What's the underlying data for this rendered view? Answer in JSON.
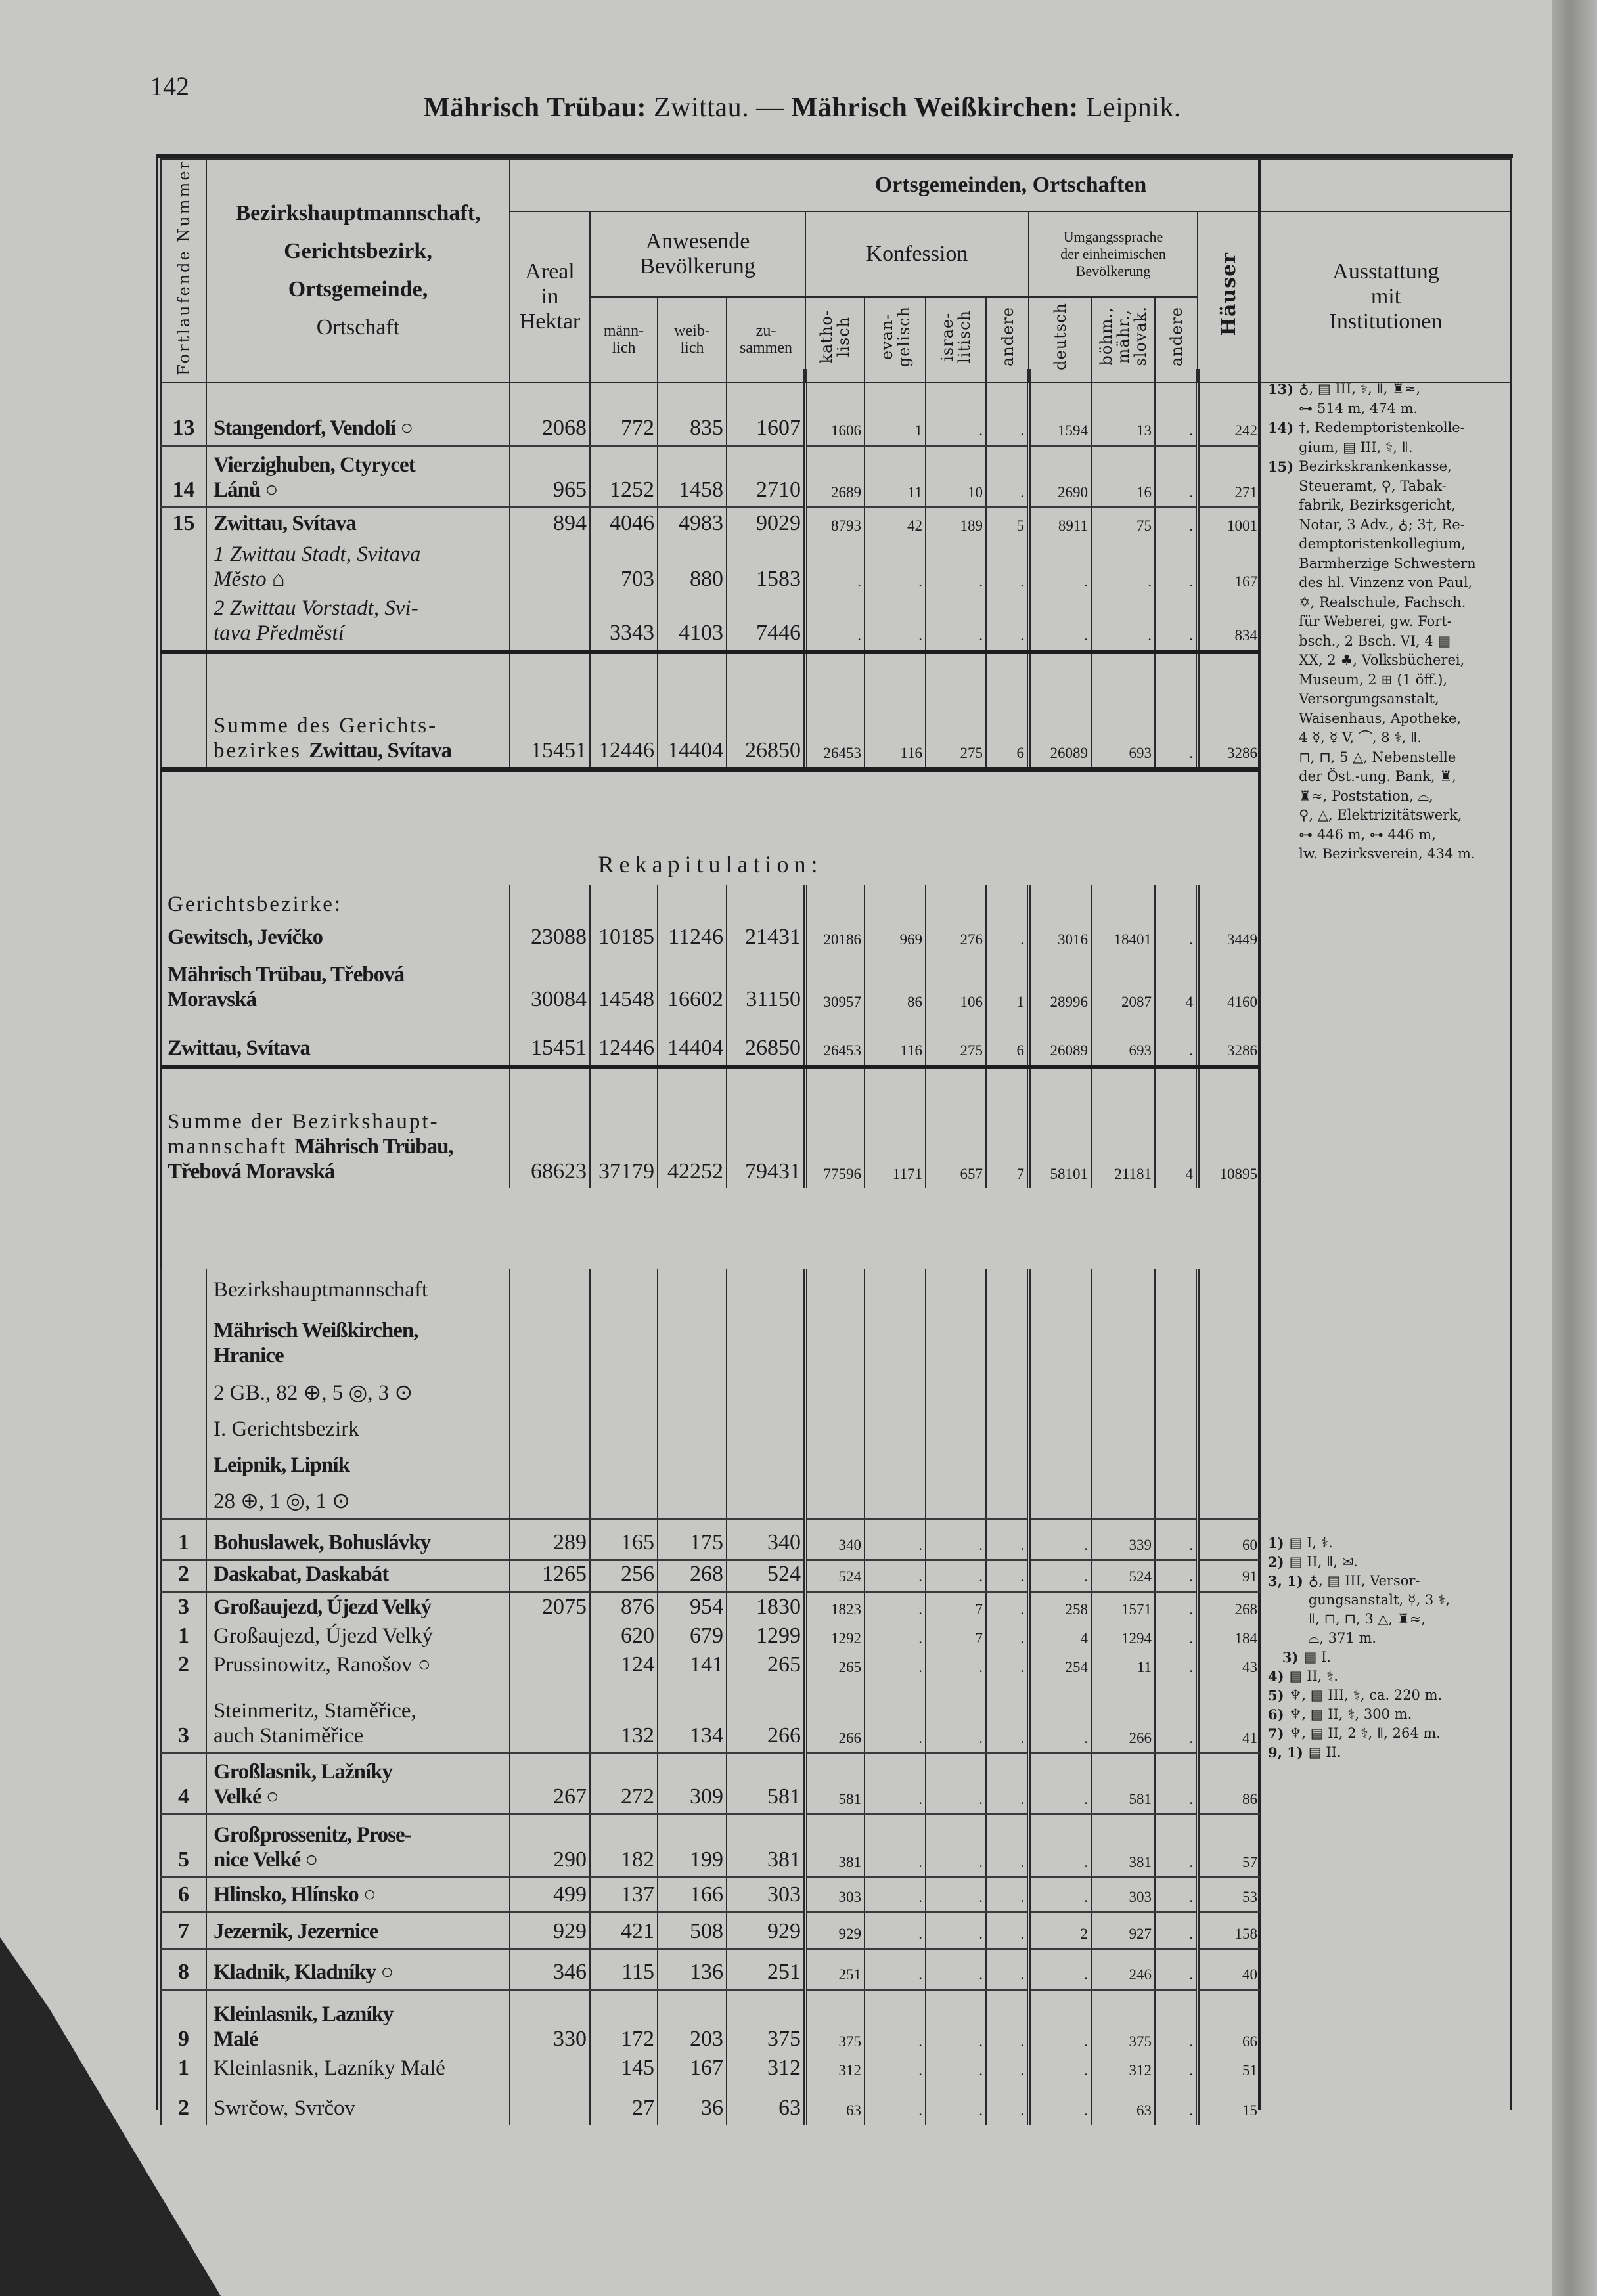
{
  "page_number": "142",
  "running_title": {
    "part1": "Mährisch Trübau:",
    "part2": " Zwittau. — ",
    "part3": "Mährisch Weißkirchen:",
    "part4": " Leipnik."
  },
  "header": {
    "number_col": "Fortlaufende Nummer",
    "name_col": {
      "line1": "Bezirkshauptmannschaft,",
      "line2": "Gerichtsbezirk,",
      "line3": "Ortsgemeinde,",
      "line4": "Ortschaft"
    },
    "group_title": "Ortsgemeinden, Ortschaften",
    "areal": "Areal\nin\nHektar",
    "population": {
      "title": "Anwesende\nBevölkerung",
      "male": "männ-\nlich",
      "female": "weib-\nlich",
      "total": "zu-\nsammen"
    },
    "confession": {
      "title": "Konfession",
      "catholic": "katho-\nlisch",
      "protestant": "evan-\ngelisch",
      "jewish": "israe-\nlitisch",
      "other": "andere"
    },
    "language": {
      "title": "Umgangssprache\nder einheimischen\nBevölkerung",
      "german": "deutsch",
      "czech": "böhm.,\nmähr.,\nslovak.",
      "other": "andere"
    },
    "houses": "Häuser",
    "institutions": "Ausstattung\nmit\nInstitutionen"
  },
  "section1": {
    "rows": [
      {
        "num": "13",
        "name": "Stangendorf, Vendolí ○",
        "style": "bold",
        "values": [
          "2068",
          "772",
          "835",
          "1607",
          "1606",
          "1",
          ".",
          ".",
          "1594",
          "13",
          ".",
          "242"
        ]
      },
      {
        "num": "14",
        "name": "Vierzighuben, Ctyrycet\n     Lánů ○",
        "style": "bold",
        "values": [
          "965",
          "1252",
          "1458",
          "2710",
          "2689",
          "11",
          "10",
          ".",
          "2690",
          "16",
          ".",
          "271"
        ]
      },
      {
        "num": "15",
        "name": "Zwittau, Svítava",
        "style": "bold",
        "values": [
          "894",
          "4046",
          "4983",
          "9029",
          "8793",
          "42",
          "189",
          "5",
          "8911",
          "75",
          ".",
          "1001"
        ]
      },
      {
        "num": "",
        "name": "1 Zwittau Stadt, Svitava\n   Město ⌂",
        "style": "italic",
        "values": [
          "",
          "703",
          "880",
          "1583",
          ".",
          ".",
          ".",
          ".",
          ".",
          ".",
          ".",
          "167"
        ]
      },
      {
        "num": "",
        "name": "2 Zwittau Vorstadt, Svi-\n   tava Předměstí",
        "style": "italic",
        "values": [
          "",
          "3343",
          "4103",
          "7446",
          ".",
          ".",
          ".",
          ".",
          ".",
          ".",
          ".",
          "834"
        ]
      }
    ],
    "sum": {
      "prefix": "Summe des Gerichts-\nbezirkes ",
      "name": "Zwittau, Svítava",
      "values": [
        "15451",
        "12446",
        "14404",
        "26850",
        "26453",
        "116",
        "275",
        "6",
        "26089",
        "693",
        ".",
        "3286"
      ]
    }
  },
  "recap": {
    "title": "Rekapitulation:",
    "label": "Gerichtsbezirke:",
    "rows": [
      {
        "name": "Gewitsch, Jevíčko",
        "values": [
          "23088",
          "10185",
          "11246",
          "21431",
          "20186",
          "969",
          "276",
          ".",
          "3016",
          "18401",
          ".",
          "3449"
        ]
      },
      {
        "name": "Mährisch Trübau, Třebová\n     Moravská",
        "values": [
          "30084",
          "14548",
          "16602",
          "31150",
          "30957",
          "86",
          "106",
          "1",
          "28996",
          "2087",
          "4",
          "4160"
        ]
      },
      {
        "name": "Zwittau, Svítava",
        "values": [
          "15451",
          "12446",
          "14404",
          "26850",
          "26453",
          "116",
          "275",
          "6",
          "26089",
          "693",
          ".",
          "3286"
        ]
      }
    ],
    "sum": {
      "prefix": "Summe der Bezirkshaupt-\nmannschaft ",
      "name": "Mährisch Trübau,\nTřebová Moravská",
      "values": [
        "68623",
        "37179",
        "42252",
        "79431",
        "77596",
        "1171",
        "657",
        "7",
        "58101",
        "21181",
        "4",
        "10895"
      ]
    }
  },
  "section2": {
    "intro": [
      {
        "text": "Bezirkshauptmannschaft",
        "style": "normal"
      },
      {
        "text": "Mährisch Weißkirchen,\nHranice",
        "style": "bold"
      },
      {
        "text": "2 GB., 82 ⊕, 5 ◎, 3 ⊙",
        "style": "normal"
      },
      {
        "text": "I. Gerichtsbezirk",
        "style": "normal"
      },
      {
        "text": "Leipnik, Lipník",
        "style": "bold"
      },
      {
        "text": "28 ⊕, 1 ◎, 1 ⊙",
        "style": "normal"
      }
    ],
    "rows": [
      {
        "num": "1",
        "name": "Bohuslawek, Bohuslávky",
        "style": "bold",
        "values": [
          "289",
          "165",
          "175",
          "340",
          "340",
          ".",
          ".",
          ".",
          ".",
          "339",
          ".",
          "60"
        ]
      },
      {
        "num": "2",
        "name": "Daskabat, Daskabát",
        "style": "bold",
        "values": [
          "1265",
          "256",
          "268",
          "524",
          "524",
          ".",
          ".",
          ".",
          ".",
          "524",
          ".",
          "91"
        ]
      },
      {
        "num": "3",
        "name": "Großaujezd, Újezd Velký",
        "style": "bold",
        "values": [
          "2075",
          "876",
          "954",
          "1830",
          "1823",
          ".",
          "7",
          ".",
          "258",
          "1571",
          ".",
          "268"
        ]
      },
      {
        "num": "1",
        "name": "Großaujezd, Újezd Velký",
        "style": "normal",
        "values": [
          "",
          "620",
          "679",
          "1299",
          "1292",
          ".",
          "7",
          ".",
          "4",
          "1294",
          ".",
          "184"
        ]
      },
      {
        "num": "2",
        "name": "Prussinowitz, Ranošov ○",
        "style": "normal",
        "values": [
          "",
          "124",
          "141",
          "265",
          "265",
          ".",
          ".",
          ".",
          "254",
          "11",
          ".",
          "43"
        ]
      },
      {
        "num": "3",
        "name": "Steinmeritz,   Staměřice,\n  auch Staniměřice",
        "style": "normal",
        "values": [
          "",
          "132",
          "134",
          "266",
          "266",
          ".",
          ".",
          ".",
          ".",
          "266",
          ".",
          "41"
        ]
      },
      {
        "num": "4",
        "name": "Großlasnik,   Lažníky\n  Velké ○",
        "style": "bold",
        "values": [
          "267",
          "272",
          "309",
          "581",
          "581",
          ".",
          ".",
          ".",
          ".",
          "581",
          ".",
          "86"
        ]
      },
      {
        "num": "5",
        "name": "Großprossenitz, Prose-\n  nice Velké ○",
        "style": "bold",
        "values": [
          "290",
          "182",
          "199",
          "381",
          "381",
          ".",
          ".",
          ".",
          ".",
          "381",
          ".",
          "57"
        ]
      },
      {
        "num": "6",
        "name": "Hlinsko, Hlínsko ○",
        "style": "bold",
        "values": [
          "499",
          "137",
          "166",
          "303",
          "303",
          ".",
          ".",
          ".",
          ".",
          "303",
          ".",
          "53"
        ]
      },
      {
        "num": "7",
        "name": "Jezernik, Jezernice",
        "style": "bold",
        "values": [
          "929",
          "421",
          "508",
          "929",
          "929",
          ".",
          ".",
          ".",
          "2",
          "927",
          ".",
          "158"
        ]
      },
      {
        "num": "8",
        "name": "Kladnik, Kladníky ○",
        "style": "bold",
        "values": [
          "346",
          "115",
          "136",
          "251",
          "251",
          ".",
          ".",
          ".",
          ".",
          "246",
          ".",
          "40"
        ]
      },
      {
        "num": "9",
        "name": "Kleinlasnik,   Lazníky\n  Malé",
        "style": "bold",
        "values": [
          "330",
          "172",
          "203",
          "375",
          "375",
          ".",
          ".",
          ".",
          ".",
          "375",
          ".",
          "66"
        ]
      },
      {
        "num": "1",
        "name": "Kleinlasnik, Lazníky Malé",
        "style": "normal",
        "values": [
          "",
          "145",
          "167",
          "312",
          "312",
          ".",
          ".",
          ".",
          ".",
          "312",
          ".",
          "51"
        ]
      },
      {
        "num": "2",
        "name": "Swrčow, Svrčov",
        "style": "normal",
        "values": [
          "",
          "27",
          "36",
          "63",
          "63",
          ".",
          ".",
          ".",
          ".",
          "63",
          ".",
          "15"
        ]
      }
    ]
  },
  "remarks1": [
    {
      "label": "13)",
      "lines": [
        "♁, ▤ III, ⚕, ǁ, ♜≈,",
        "⊶ 514 m, 474 m."
      ]
    },
    {
      "label": "14)",
      "lines": [
        "†, Redemptoristenkolle-",
        "gium, ▤ III, ⚕, ǁ."
      ]
    },
    {
      "label": "15)",
      "lines": [
        "Bezirkskrankenkasse,",
        "Steueramt, ⚲, Tabak-",
        "fabrik, Bezirksgericht,",
        "Notar, 3 Adv., ♁; 3†, Re-",
        "demptoristenkollegium,",
        "Barmherzige Schwestern",
        "des hl. Vinzenz von Paul,",
        "✡, Realschule, Fachsch.",
        "für Weberei, gw. Fort-",
        "bsch., 2 Bsch. VI, 4 ▤",
        "XX, 2 ♣, Volksbücherei,",
        "Museum, 2 ⊞ (1 öff.),",
        "Versorgungsanstalt,",
        "Waisenhaus, Apotheke,",
        "4 ☿, ☿ V, ⌒, 8 ⚕, ǁ.",
        "⊓, ⊓, 5 △, Nebenstelle",
        "der Öst.-ung. Bank, ♜,",
        "♜≈, Poststation, ⌓,",
        "⚲, △, Elektrizitätswerk,",
        "⊶ 446 m, ⊶ 446 m,",
        "lw. Bezirksverein, 434 m."
      ]
    }
  ],
  "remarks2": [
    {
      "label": "1)",
      "lines": [
        "▤ I, ⚕."
      ]
    },
    {
      "label": "2)",
      "lines": [
        "▤ II, ǁ, ✉."
      ]
    },
    {
      "label": "3, 1)",
      "lines": [
        "♁, ▤ III, Versor-",
        "gungsanstalt, ☿, 3 ⚕,",
        "ǁ, ⊓, ⊓, 3 △, ♜≈,",
        "⌓, 371 m."
      ]
    },
    {
      "label": "   3)",
      "lines": [
        "▤ I."
      ]
    },
    {
      "label": "4)",
      "lines": [
        "▤ II, ⚕."
      ]
    },
    {
      "label": "5)",
      "lines": [
        "♆, ▤ III, ⚕, ca. 220 m."
      ]
    },
    {
      "label": "6)",
      "lines": [
        "♆, ▤ II, ⚕, 300 m."
      ]
    },
    {
      "label": "7)",
      "lines": [
        "♆, ▤ II, 2 ⚕, ǁ, 264 m."
      ]
    },
    {
      "label": "9, 1)",
      "lines": [
        "▤ II."
      ]
    }
  ]
}
